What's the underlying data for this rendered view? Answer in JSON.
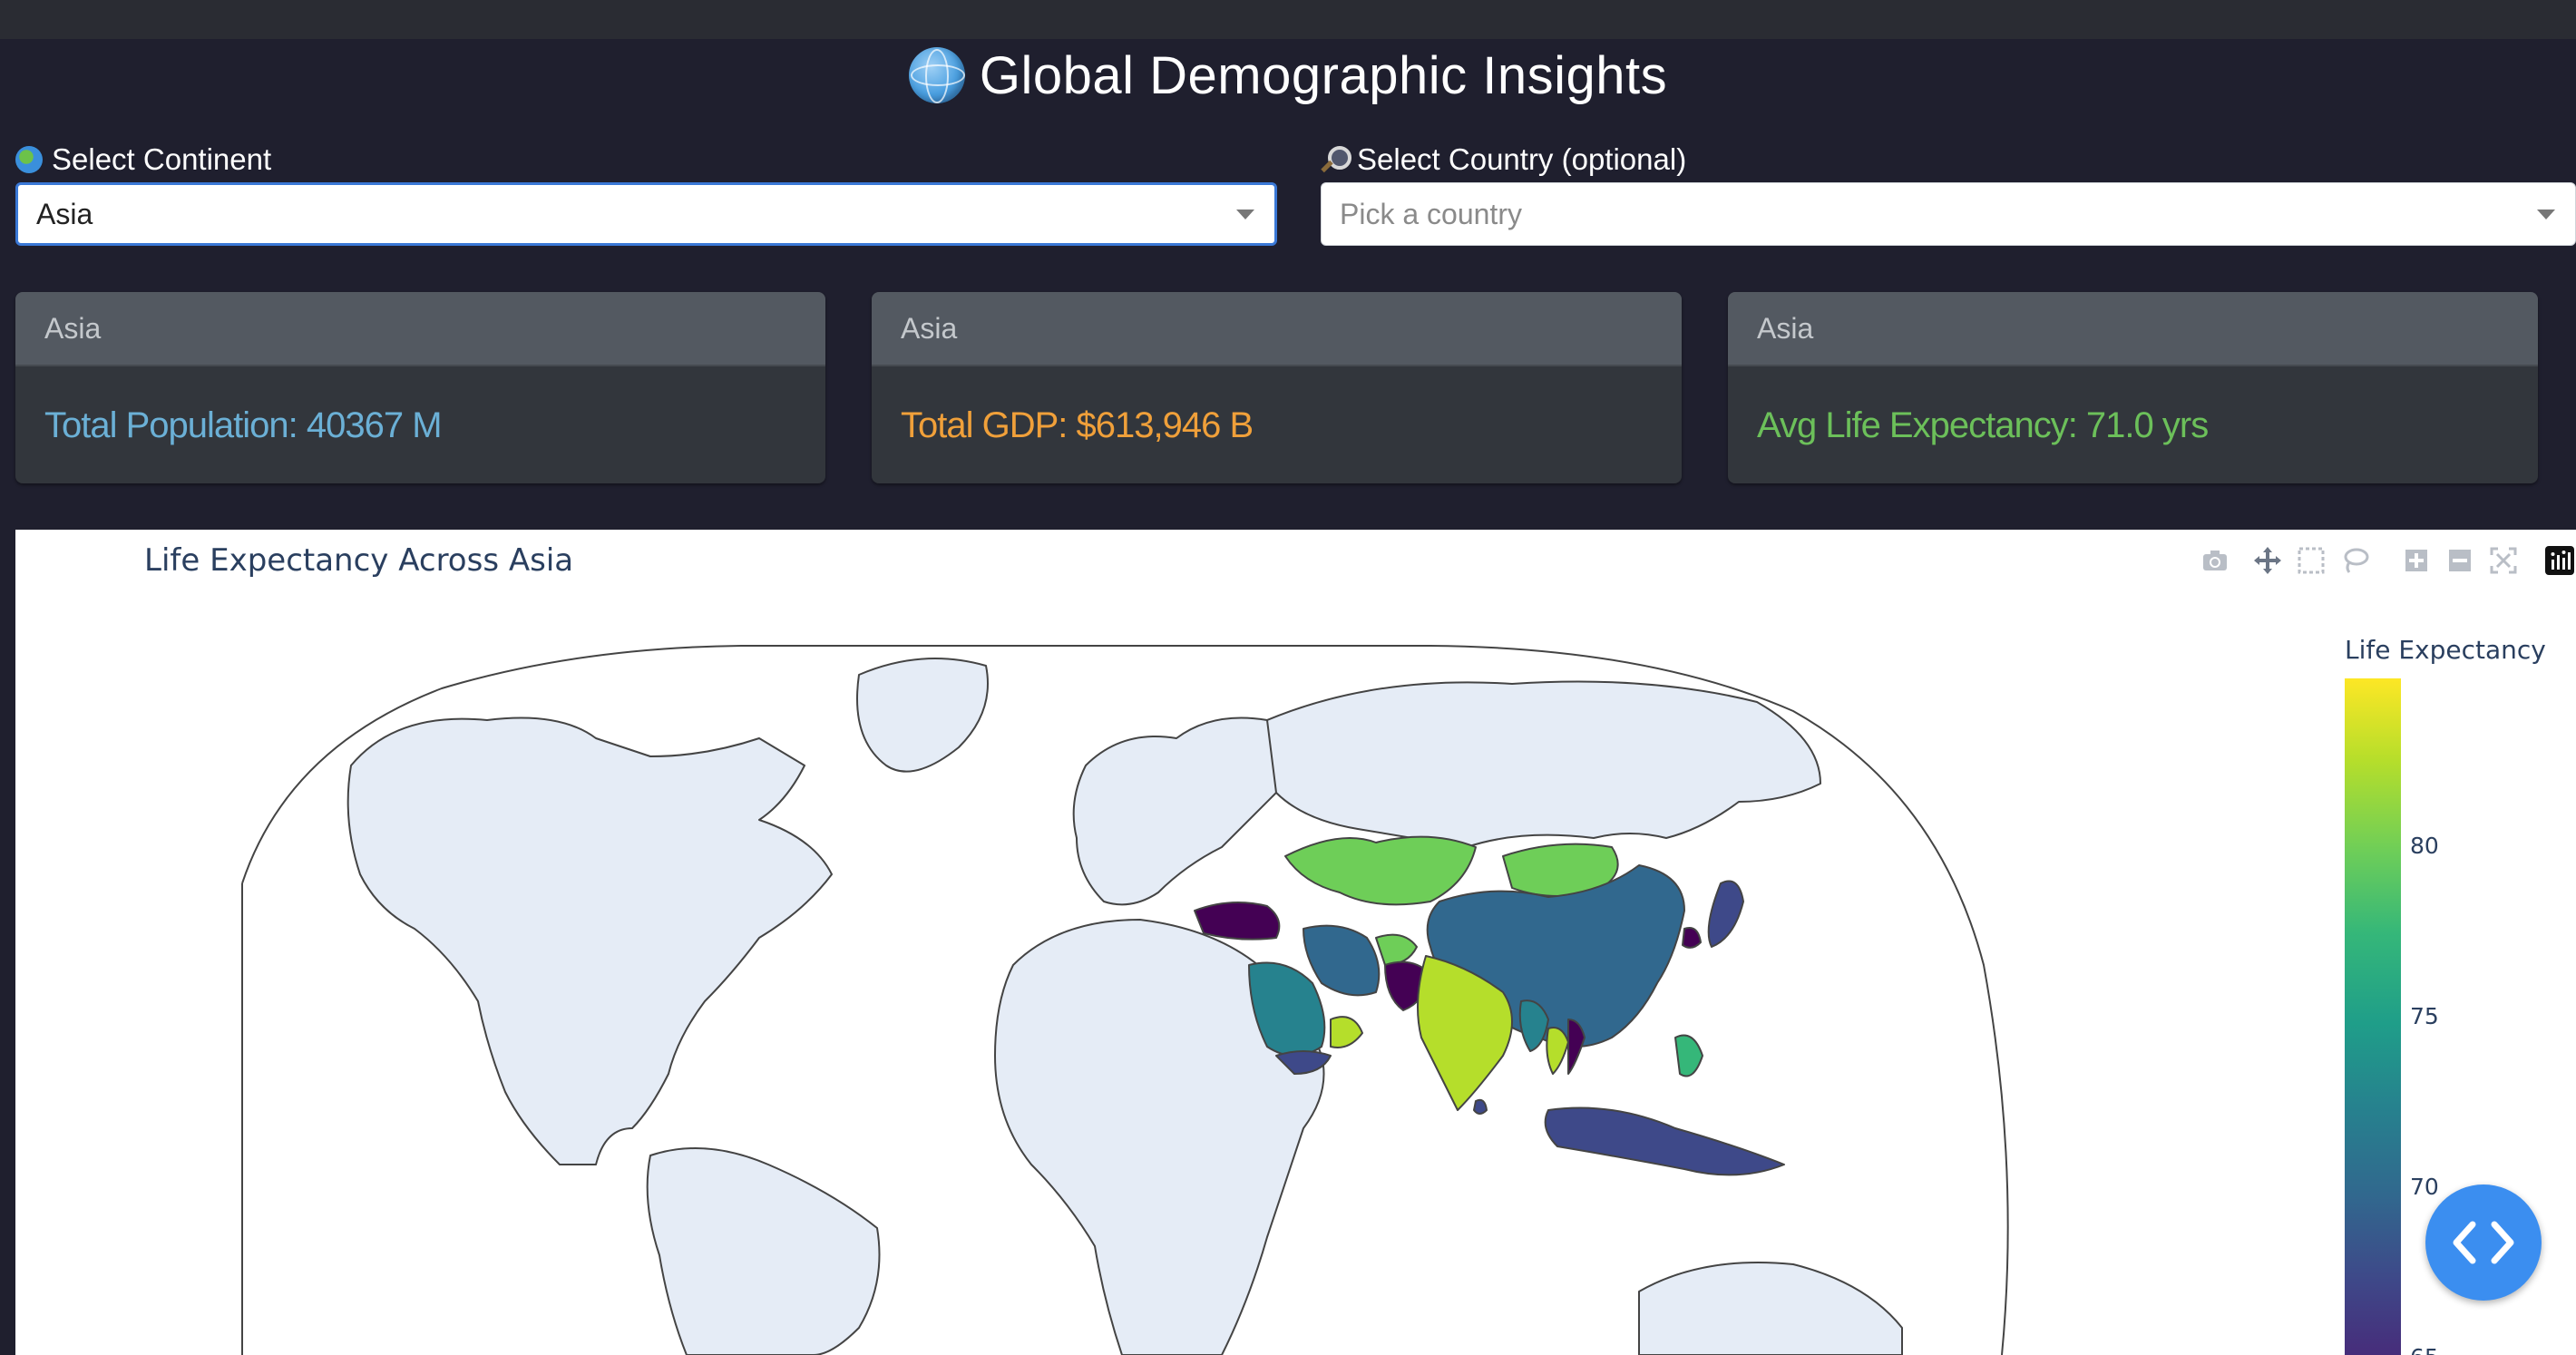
{
  "header": {
    "title": "Global Demographic Insights",
    "title_icon": "globe-icon"
  },
  "filters": {
    "continent": {
      "label": "Select Continent",
      "icon": "earth-icon",
      "value": "Asia"
    },
    "country": {
      "label": "Select Country (optional)",
      "icon": "magnifier-icon",
      "placeholder": "Pick a country"
    }
  },
  "cards": [
    {
      "header": "Asia",
      "value": "Total Population: 40367 M",
      "color": "#6bb0d6"
    },
    {
      "header": "Asia",
      "value": "Total GDP: $613,946 B",
      "color": "#f0a03a"
    },
    {
      "header": "Asia",
      "value": "Avg Life Expectancy: 71.0 yrs",
      "color": "#6cc05a"
    }
  ],
  "chart": {
    "title": "Life Expectancy Across Asia",
    "modebar": [
      "camera-icon",
      "pan-icon",
      "box-select-icon",
      "lasso-icon",
      "zoom-in-icon",
      "zoom-out-icon",
      "reset-icon",
      "plotly-logo-icon"
    ]
  },
  "chart_data": {
    "type": "choropleth",
    "title": "Life Expectancy Across Asia",
    "colorbar_title": "Life Expectancy",
    "colorscale": "viridis",
    "colorbar_ticks": [
      "80",
      "75",
      "70",
      "65"
    ],
    "highlighted_region": "Asia"
  },
  "fab": {
    "icon": "code-icon"
  }
}
